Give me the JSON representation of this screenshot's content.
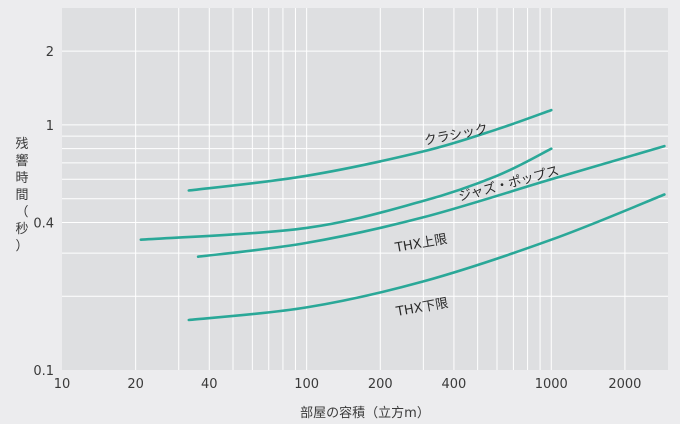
{
  "chart_data": {
    "type": "line",
    "title": "",
    "xlabel": "部屋の容積（立方m）",
    "ylabel_chars": [
      "残",
      "響",
      "時",
      "間",
      "（",
      "秒",
      "）"
    ],
    "x_scale": "log",
    "y_scale": "log",
    "xlim": [
      10,
      3000
    ],
    "ylim": [
      0.1,
      3
    ],
    "x_ticks": [
      10,
      20,
      40,
      100,
      200,
      400,
      1000,
      2000
    ],
    "x_tick_labels": [
      "10",
      "20",
      "40",
      "100",
      "200",
      "400",
      "1000",
      "2000"
    ],
    "y_ticks": [
      0.1,
      0.4,
      1,
      2
    ],
    "y_tick_labels": [
      "0.1",
      "0.4",
      "1",
      "2"
    ],
    "grid": true,
    "line_color": "#2aa898",
    "series": [
      {
        "name": "クラシック",
        "points": [
          [
            33,
            0.54
          ],
          [
            100,
            0.62
          ],
          [
            300,
            0.78
          ],
          [
            600,
            0.96
          ],
          [
            1000,
            1.15
          ]
        ]
      },
      {
        "name": "ジャズ・ポップス",
        "points": [
          [
            21,
            0.34
          ],
          [
            100,
            0.38
          ],
          [
            300,
            0.49
          ],
          [
            600,
            0.62
          ],
          [
            1000,
            0.8
          ]
        ]
      },
      {
        "name": "THX上限",
        "points": [
          [
            36,
            0.29
          ],
          [
            100,
            0.33
          ],
          [
            300,
            0.42
          ],
          [
            1000,
            0.6
          ],
          [
            2900,
            0.82
          ]
        ]
      },
      {
        "name": "THX下限",
        "points": [
          [
            33,
            0.16
          ],
          [
            100,
            0.18
          ],
          [
            300,
            0.23
          ],
          [
            1000,
            0.34
          ],
          [
            2900,
            0.52
          ]
        ]
      }
    ]
  }
}
